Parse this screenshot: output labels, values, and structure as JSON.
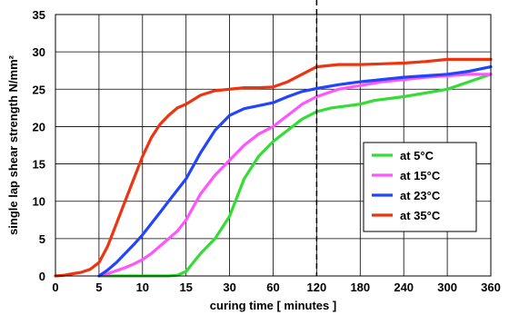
{
  "chart_data": {
    "type": "line",
    "xlabel": "curing time [ minutes ]",
    "ylabel": "single lap shear strength N/mm²",
    "x_tick_labels": [
      "0",
      "5",
      "10",
      "15",
      "30",
      "60",
      "120",
      "180",
      "240",
      "300",
      "360"
    ],
    "y_tick_labels": [
      "0",
      "5",
      "10",
      "15",
      "20",
      "25",
      "30",
      "35"
    ],
    "ylim": [
      0,
      35
    ],
    "grid": true,
    "marker_line_at_x": "120",
    "legend_position": "center-right",
    "series": [
      {
        "name": "at   5°C",
        "color": "#33dd33",
        "x": [
          "5",
          "7",
          "10",
          "12",
          "13",
          "14",
          "15",
          "20",
          "25",
          "30",
          "40",
          "50",
          "60",
          "80",
          "100",
          "120",
          "140",
          "180",
          "200",
          "240",
          "270",
          "300",
          "330",
          "360"
        ],
        "y": [
          0,
          0,
          0,
          0,
          0,
          0.1,
          0.6,
          3,
          5,
          8,
          13,
          16,
          18,
          19.5,
          21,
          22,
          22.5,
          23,
          23.5,
          24,
          24.5,
          25,
          26,
          27
        ]
      },
      {
        "name": "at 15°C",
        "color": "#ff55ff",
        "x": [
          "5",
          "6",
          "7",
          "8",
          "9",
          "10",
          "11",
          "12",
          "13",
          "14",
          "15",
          "20",
          "25",
          "30",
          "40",
          "50",
          "60",
          "80",
          "100",
          "120",
          "150",
          "180",
          "210",
          "240",
          "270",
          "300",
          "330",
          "360"
        ],
        "y": [
          0,
          0.3,
          0.7,
          1.1,
          1.6,
          2.2,
          3,
          4,
          5,
          6,
          7.5,
          11,
          13.5,
          15.5,
          17.5,
          19,
          20,
          21.5,
          23,
          24,
          25,
          25.5,
          26,
          26.3,
          26.6,
          26.8,
          27,
          27
        ]
      },
      {
        "name": "at 23°C",
        "color": "#2244ff",
        "x": [
          "5",
          "6",
          "7",
          "8",
          "9",
          "10",
          "11",
          "12",
          "13",
          "14",
          "15",
          "20",
          "25",
          "30",
          "40",
          "50",
          "60",
          "80",
          "100",
          "120",
          "150",
          "180",
          "210",
          "240",
          "270",
          "300",
          "330",
          "360"
        ],
        "y": [
          0,
          0.8,
          1.8,
          3,
          4.2,
          5.5,
          7,
          8.5,
          10,
          11.5,
          13,
          16.5,
          19.5,
          21.5,
          22.4,
          22.8,
          23.2,
          24,
          24.7,
          25.1,
          25.6,
          26,
          26.3,
          26.6,
          26.8,
          27,
          27.4,
          28
        ]
      },
      {
        "name": "at 35°C",
        "color": "#ee3311",
        "x": [
          "0",
          "1",
          "2",
          "3",
          "4",
          "5",
          "6",
          "7",
          "8",
          "9",
          "10",
          "11",
          "12",
          "13",
          "14",
          "15",
          "20",
          "25",
          "30",
          "40",
          "50",
          "60",
          "80",
          "100",
          "120",
          "150",
          "180",
          "210",
          "240",
          "270",
          "300",
          "330",
          "360"
        ],
        "y": [
          0,
          0.1,
          0.3,
          0.5,
          0.9,
          1.8,
          4,
          7,
          10,
          13,
          16,
          18.5,
          20.3,
          21.5,
          22.5,
          23,
          24.2,
          24.8,
          25,
          25.2,
          25.2,
          25.3,
          26,
          27,
          28,
          28.3,
          28.3,
          28.4,
          28.5,
          28.7,
          29,
          29,
          29
        ]
      }
    ]
  }
}
